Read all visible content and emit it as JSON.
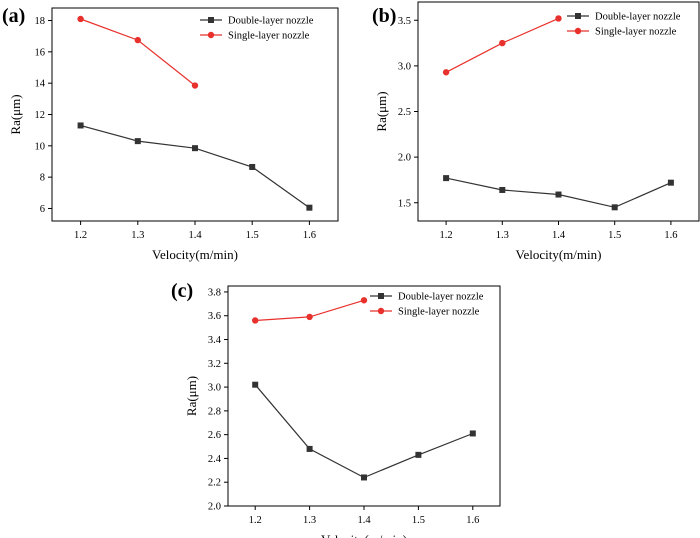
{
  "chart_data": [
    {
      "panel": "(a)",
      "type": "line",
      "xlabel": "Velocity(m/min)",
      "ylabel": "Ra(μm)",
      "xlim": [
        1.15,
        1.65
      ],
      "ylim": [
        5.2,
        18.8
      ],
      "xticks": [
        1.2,
        1.3,
        1.4,
        1.5,
        1.6
      ],
      "yticks": [
        6,
        8,
        10,
        12,
        14,
        16,
        18
      ],
      "grid": false,
      "legend_position": "top-right",
      "series": [
        {
          "name": "Double-layer nozzle",
          "marker": "square",
          "color": "#333333",
          "x": [
            1.2,
            1.3,
            1.4,
            1.5,
            1.6
          ],
          "y": [
            11.3,
            10.3,
            9.85,
            8.65,
            6.05
          ]
        },
        {
          "name": "Single-layer nozzle",
          "marker": "circle",
          "color": "#e8312c",
          "x": [
            1.2,
            1.3,
            1.4
          ],
          "y": [
            18.1,
            16.75,
            13.85
          ]
        }
      ]
    },
    {
      "panel": "(b)",
      "type": "line",
      "xlabel": "Velocity(m/min)",
      "ylabel": "Ra(μm)",
      "xlim": [
        1.15,
        1.65
      ],
      "ylim": [
        1.3,
        3.7
      ],
      "xticks": [
        1.2,
        1.3,
        1.4,
        1.5,
        1.6
      ],
      "yticks": [
        1.5,
        2.0,
        2.5,
        3.0,
        3.5
      ],
      "grid": false,
      "legend_position": "top-right",
      "series": [
        {
          "name": "Double-layer nozzle",
          "marker": "square",
          "color": "#333333",
          "x": [
            1.2,
            1.3,
            1.4,
            1.5,
            1.6
          ],
          "y": [
            1.77,
            1.64,
            1.59,
            1.45,
            1.72
          ]
        },
        {
          "name": "Single-layer nozzle",
          "marker": "circle",
          "color": "#e8312c",
          "x": [
            1.2,
            1.3,
            1.4
          ],
          "y": [
            2.93,
            3.25,
            3.52
          ]
        }
      ]
    },
    {
      "panel": "(c)",
      "type": "line",
      "xlabel": "Velocity(m/min)",
      "ylabel": "Ra(μm)",
      "xlim": [
        1.15,
        1.65
      ],
      "ylim": [
        2.0,
        3.85
      ],
      "xticks": [
        1.2,
        1.3,
        1.4,
        1.5,
        1.6
      ],
      "yticks": [
        2.0,
        2.2,
        2.4,
        2.6,
        2.8,
        3.0,
        3.2,
        3.4,
        3.6,
        3.8
      ],
      "grid": false,
      "legend_position": "top-right",
      "series": [
        {
          "name": "Double-layer nozzle",
          "marker": "square",
          "color": "#333333",
          "x": [
            1.2,
            1.3,
            1.4,
            1.5,
            1.6
          ],
          "y": [
            3.02,
            2.48,
            2.24,
            2.43,
            2.61
          ]
        },
        {
          "name": "Single-layer nozzle",
          "marker": "circle",
          "color": "#e8312c",
          "x": [
            1.2,
            1.3,
            1.4
          ],
          "y": [
            3.56,
            3.59,
            3.73
          ]
        }
      ]
    }
  ]
}
